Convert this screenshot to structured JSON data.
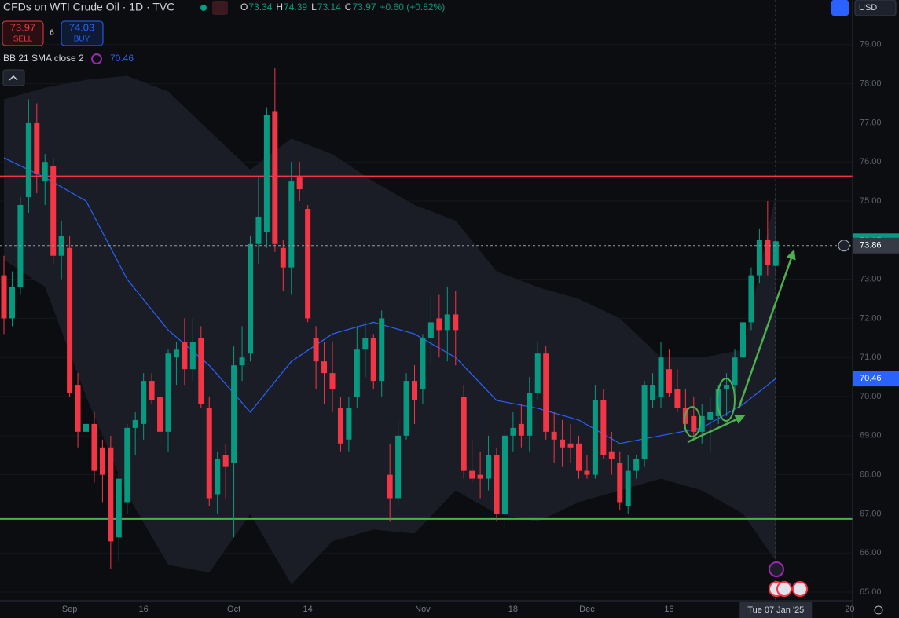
{
  "chart_data": {
    "type": "candlestick",
    "title": "CFDs on WTI Crude Oil · 1D · TVC",
    "quote": [
      {
        "key": "O",
        "value": 73.34
      },
      {
        "key": "H",
        "value": 74.39
      },
      {
        "key": "L",
        "value": 73.14
      },
      {
        "key": "C",
        "value": 73.97
      }
    ],
    "change": "+0.60 (+0.82%)",
    "trade": {
      "sell": {
        "price": 73.97,
        "label": "SELL"
      },
      "spread": 6,
      "buy": {
        "price": 74.03,
        "label": "BUY"
      }
    },
    "currency": "USD",
    "indicator": {
      "name": "BB 21 SMA close 2",
      "value": 70.46
    },
    "categories": [
      null,
      null,
      null,
      null,
      null,
      null,
      null,
      null,
      "Sep",
      null,
      null,
      null,
      null,
      null,
      null,
      null,
      null,
      "16",
      null,
      null,
      null,
      null,
      null,
      null,
      null,
      null,
      null,
      null,
      "Oct",
      null,
      null,
      null,
      null,
      null,
      null,
      null,
      null,
      "14",
      null,
      null,
      null,
      null,
      null,
      null,
      null,
      null,
      null,
      null,
      null,
      null,
      null,
      "Nov",
      null,
      null,
      null,
      null,
      null,
      null,
      null,
      null,
      null,
      null,
      "18",
      null,
      null,
      null,
      null,
      null,
      null,
      null,
      null,
      "Dec",
      null,
      null,
      null,
      null,
      null,
      null,
      null,
      null,
      null,
      "16",
      null,
      null,
      null,
      null,
      null,
      null,
      null,
      null,
      null,
      null,
      null,
      null,
      null,
      null,
      null,
      null,
      null,
      null,
      null,
      null,
      null,
      "20"
    ],
    "open": [
      73.1,
      72.0,
      72.8,
      75.1,
      77.0,
      75.5,
      75.9,
      73.6,
      73.8,
      70.3,
      69.1,
      69.3,
      68.7,
      68.7,
      66.4,
      67.3,
      69.2,
      69.3,
      70.4,
      70.0,
      69.1,
      71.0,
      71.4,
      70.7,
      71.5,
      69.7,
      67.5,
      68.5,
      68.3,
      70.8,
      71.1,
      73.9,
      74.2,
      77.3,
      73.8,
      73.3,
      75.6,
      74.8,
      71.5,
      70.9,
      70.6,
      69.7,
      68.9,
      70.0,
      71.2,
      71.5,
      70.4,
      68.0,
      67.4,
      69.0,
      70.4,
      70.2,
      71.5,
      72.0,
      71.7,
      72.1,
      70.0,
      68.1,
      68.0,
      67.9,
      68.5,
      67.0,
      69.0,
      69.3,
      69.0,
      70.1,
      71.1,
      69.1,
      68.9,
      68.8,
      68.8,
      68.1,
      68.0,
      69.9,
      68.6,
      68.3,
      67.2,
      68.1,
      68.4,
      69.9,
      70.0,
      70.7,
      70.2,
      69.7,
      69.5,
      69.1,
      69.4,
      69.5,
      70.2,
      70.3,
      71.0,
      71.9,
      73.1,
      74.0,
      73.34,
      null,
      null,
      null,
      null,
      null,
      null,
      null,
      null,
      null
    ],
    "high": [
      73.6,
      73.2,
      75.1,
      77.6,
      77.5,
      76.2,
      76.1,
      74.5,
      74.1,
      70.6,
      69.4,
      69.6,
      68.9,
      69.0,
      68.0,
      69.3,
      69.6,
      70.6,
      70.6,
      70.2,
      71.2,
      71.4,
      72.0,
      72.0,
      71.8,
      70.0,
      68.6,
      68.8,
      71.3,
      71.8,
      74.1,
      75.6,
      77.4,
      78.4,
      74.0,
      76.0,
      76.0,
      74.9,
      71.8,
      71.4,
      71.4,
      70.0,
      70.0,
      71.8,
      71.9,
      71.6,
      72.2,
      68.8,
      69.4,
      70.6,
      70.8,
      71.6,
      72.6,
      72.6,
      72.8,
      72.7,
      70.3,
      68.9,
      68.6,
      69.0,
      68.7,
      69.2,
      69.6,
      69.8,
      70.5,
      71.4,
      71.3,
      69.6,
      69.4,
      69.3,
      69.0,
      68.5,
      70.3,
      70.2,
      69.1,
      68.6,
      68.5,
      68.5,
      70.4,
      70.6,
      71.4,
      71.2,
      70.7,
      70.2,
      70.0,
      69.8,
      70.0,
      70.3,
      70.6,
      71.2,
      72.0,
      73.3,
      74.3,
      75.0,
      74.39,
      null,
      null,
      null,
      null,
      null,
      null,
      null,
      null,
      null
    ],
    "low": [
      71.6,
      71.8,
      72.6,
      74.7,
      75.2,
      74.9,
      73.4,
      73.0,
      70.0,
      68.7,
      68.9,
      67.8,
      67.3,
      65.6,
      65.8,
      67.0,
      68.5,
      68.9,
      69.8,
      68.8,
      68.6,
      70.3,
      70.3,
      70.4,
      69.7,
      67.2,
      67.0,
      67.4,
      66.4,
      70.4,
      70.9,
      73.4,
      73.8,
      73.7,
      72.7,
      72.6,
      75.0,
      71.9,
      70.2,
      69.8,
      69.6,
      68.6,
      68.6,
      69.7,
      70.5,
      70.2,
      70.0,
      66.8,
      67.2,
      68.9,
      69.3,
      69.8,
      70.8,
      71.0,
      70.9,
      70.8,
      67.9,
      67.8,
      67.4,
      67.6,
      66.8,
      66.6,
      68.6,
      68.7,
      68.6,
      69.9,
      68.9,
      68.3,
      68.2,
      68.3,
      67.9,
      67.9,
      67.9,
      68.4,
      68.0,
      67.1,
      67.0,
      67.9,
      68.2,
      69.7,
      69.7,
      70.0,
      69.6,
      69.2,
      68.9,
      68.8,
      68.6,
      69.3,
      69.5,
      69.9,
      70.8,
      71.7,
      72.9,
      73.1,
      73.14,
      null,
      null,
      null,
      null,
      null,
      null,
      null,
      null,
      null
    ],
    "close": [
      72.0,
      72.8,
      74.9,
      77.0,
      75.7,
      76.0,
      73.6,
      74.1,
      70.1,
      69.1,
      69.3,
      68.1,
      68.0,
      66.3,
      67.9,
      69.2,
      69.4,
      70.4,
      69.9,
      69.1,
      71.1,
      71.2,
      70.7,
      71.4,
      69.8,
      67.4,
      68.4,
      68.2,
      70.8,
      71.0,
      73.9,
      74.6,
      77.2,
      73.9,
      73.3,
      75.5,
      75.3,
      72.0,
      70.9,
      70.6,
      70.2,
      68.8,
      69.7,
      71.2,
      71.5,
      70.4,
      72.0,
      67.4,
      69.0,
      70.4,
      69.9,
      71.5,
      71.9,
      71.7,
      72.1,
      71.7,
      68.1,
      67.9,
      67.9,
      68.5,
      67.0,
      69.0,
      69.2,
      69.0,
      70.1,
      71.1,
      69.1,
      68.9,
      68.7,
      68.7,
      68.1,
      68.0,
      69.9,
      68.5,
      68.4,
      67.3,
      68.1,
      68.4,
      70.3,
      70.3,
      71.0,
      70.1,
      69.7,
      69.3,
      69.1,
      69.5,
      69.6,
      70.2,
      70.3,
      71.0,
      71.9,
      73.1,
      74.0,
      73.36,
      73.97,
      null,
      null,
      null,
      null,
      null,
      null,
      null,
      null,
      null
    ],
    "up_color": "#089981",
    "down_color": "#f23645",
    "bb": {
      "x": [
        0,
        5,
        10,
        15,
        20,
        25,
        30,
        35,
        40,
        45,
        50,
        55,
        60,
        65,
        70,
        75,
        80,
        85,
        90,
        94
      ],
      "middle": [
        76.1,
        75.6,
        75.0,
        73.0,
        71.7,
        70.8,
        69.6,
        70.9,
        71.6,
        71.9,
        71.6,
        71.0,
        69.9,
        69.7,
        69.4,
        68.8,
        69.0,
        69.2,
        69.8,
        70.46
      ],
      "upper": [
        77.6,
        77.9,
        78.1,
        78.2,
        77.8,
        76.8,
        75.8,
        76.6,
        76.2,
        75.5,
        74.9,
        74.5,
        73.2,
        72.8,
        72.5,
        72.0,
        71.0,
        71.0,
        71.2,
        75.2
      ],
      "lower": [
        73.5,
        72.8,
        70.0,
        67.5,
        65.7,
        65.5,
        67.0,
        65.2,
        66.3,
        66.6,
        66.5,
        67.6,
        67.0,
        66.8,
        67.3,
        67.6,
        67.9,
        67.6,
        67.0,
        65.8
      ],
      "color": "#2962ff",
      "fill": "#1a1d26"
    },
    "hlines": [
      {
        "value": 75.63,
        "color": "#f23645"
      },
      {
        "value": 66.87,
        "color": "#4caf50"
      }
    ],
    "crosshair": {
      "value": 73.86,
      "date": "Tue 07 Jan '25"
    },
    "ylim": [
      64.78,
      80.14
    ],
    "yticks": [
      {
        "value": 79,
        "label": "79.00"
      },
      {
        "value": 78,
        "label": "78.00"
      },
      {
        "value": 77,
        "label": "77.00"
      },
      {
        "value": 76,
        "label": "76.00"
      },
      {
        "value": 75,
        "label": "75.00"
      },
      {
        "value": 74,
        "label": "74.00"
      },
      {
        "value": 73,
        "label": "73.00"
      },
      {
        "value": 72,
        "label": "72.00"
      },
      {
        "value": 71,
        "label": "71.00"
      },
      {
        "value": 70,
        "label": "70.00"
      },
      {
        "value": 69,
        "label": "69.00"
      },
      {
        "value": 68,
        "label": "68.00"
      },
      {
        "value": 67,
        "label": "67.00"
      },
      {
        "value": 66,
        "label": "66.00"
      },
      {
        "value": 65,
        "label": "65.00"
      }
    ]
  }
}
